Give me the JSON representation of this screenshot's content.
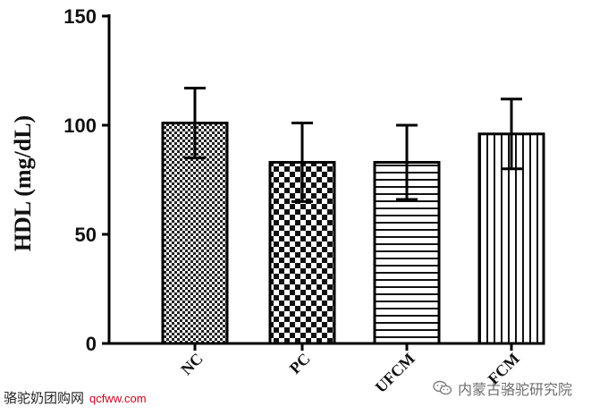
{
  "chart_data": {
    "type": "bar",
    "title": "",
    "xlabel": "",
    "ylabel": "HDL (mg/dL)",
    "ylim": [
      0,
      150
    ],
    "yticks": [
      "0",
      "50",
      "100",
      "150"
    ],
    "categories": [
      "NC",
      "PC",
      "UFCM",
      "FCM"
    ],
    "values": [
      101,
      83,
      83,
      96
    ],
    "errors": [
      16,
      18,
      17,
      16
    ],
    "patterns": [
      "fine-check",
      "checker",
      "horizontal-lines",
      "vertical-lines"
    ],
    "bar_color": "#000000",
    "grid": false
  },
  "watermarks": {
    "left_text": "骆驼奶团购网",
    "left_url": "qcfww.com",
    "right_text": "内蒙古骆驼研究院",
    "right_icon": "wechat-icon"
  }
}
